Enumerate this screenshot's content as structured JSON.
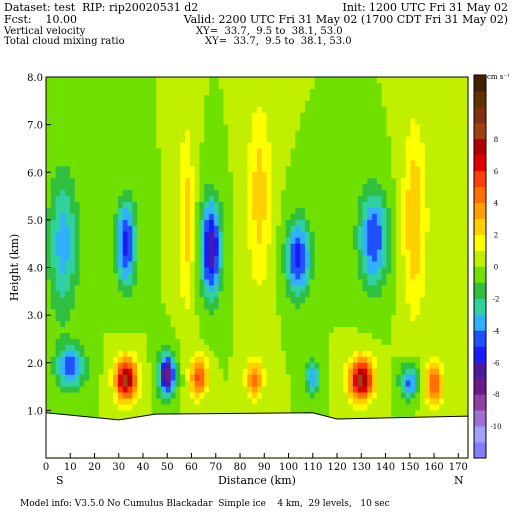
{
  "header": {
    "dataset": "Dataset: test  RIP: rip20020531 d2",
    "init": "Init: 1200 UTC Fri 31 May 02",
    "fcst": "Fcst:    10.00",
    "valid": "Valid: 2200 UTC Fri 31 May 02 (1700 CDT Fri 31 May 02)",
    "field1": "Vertical velocity",
    "field1_xy": "XY=  33.7,  9.5 to  38.1, 53.0",
    "field2": "Total cloud mixing ratio",
    "field2_xy": "XY=  33.7,  9.5 to  38.1, 53.0"
  },
  "footer": {
    "model_info": "Model info: V3.5.0 No Cumulus Blackadar  Simple ice    4 km,  29 levels,   10 sec"
  },
  "chart_data": {
    "type": "heatmap",
    "xlabel": "Distance (km)",
    "ylabel": "Height (km)",
    "xlim": [
      0,
      174
    ],
    "ylim": [
      0,
      8
    ],
    "x_ticks": [
      0,
      10,
      20,
      30,
      40,
      50,
      60,
      70,
      80,
      90,
      100,
      110,
      120,
      130,
      140,
      150,
      160,
      170
    ],
    "y_ticks": [
      {
        "value": 1,
        "label": "1.0"
      },
      {
        "value": 2,
        "label": "2.0"
      },
      {
        "value": 3,
        "label": "3.0"
      },
      {
        "value": 4,
        "label": "4.0"
      },
      {
        "value": 5,
        "label": "5.0"
      },
      {
        "value": 6,
        "label": "6.0"
      },
      {
        "value": 7,
        "label": "7.0"
      },
      {
        "value": 8,
        "label": "8.0"
      }
    ],
    "x_end_labels": {
      "left": "S",
      "right": "N"
    },
    "colorbar": {
      "unit": "cm s⁻¹",
      "labels": [
        {
          "value": 8,
          "label": "8"
        },
        {
          "value": 6,
          "label": "6"
        },
        {
          "value": 4,
          "label": "4"
        },
        {
          "value": 2,
          "label": "2"
        },
        {
          "value": 0,
          "label": "0"
        },
        {
          "value": -2,
          "label": "-2"
        },
        {
          "value": -4,
          "label": "-4"
        },
        {
          "value": -6,
          "label": "-6"
        },
        {
          "value": -8,
          "label": "-8"
        },
        {
          "value": -10,
          "label": "-10"
        }
      ],
      "range": [
        -12,
        12
      ],
      "colors": [
        "#8080ff",
        "#a0a0ff",
        "#a070d0",
        "#9040a0",
        "#6a1a8a",
        "#4c1a9a",
        "#1a1aff",
        "#2050ff",
        "#30b0ff",
        "#30d0a0",
        "#30c040",
        "#70e000",
        "#c0f000",
        "#ffff00",
        "#ffd000",
        "#ffa000",
        "#ff7000",
        "#ff4000",
        "#e00000",
        "#b00000",
        "#a04010",
        "#803010",
        "#603000",
        "#402000"
      ]
    },
    "field": {
      "background": 0,
      "features": [
        {
          "x": 33,
          "z": 1.65,
          "amplitude": 8.5,
          "sx": 4.5,
          "sz": 0.45
        },
        {
          "x": 50,
          "z": 1.75,
          "amplitude": -7.5,
          "sx": 3.5,
          "sz": 0.45
        },
        {
          "x": 63,
          "z": 1.7,
          "amplitude": 5.5,
          "sx": 3.5,
          "sz": 0.4
        },
        {
          "x": 86,
          "z": 1.65,
          "amplitude": 4.5,
          "sx": 3.5,
          "sz": 0.4
        },
        {
          "x": 110,
          "z": 1.7,
          "amplitude": -4.0,
          "sx": 3.0,
          "sz": 0.35
        },
        {
          "x": 130,
          "z": 1.65,
          "amplitude": 8.5,
          "sx": 5.0,
          "sz": 0.45
        },
        {
          "x": 150,
          "z": 1.6,
          "amplitude": -4.5,
          "sx": 4.0,
          "sz": 0.35
        },
        {
          "x": 160,
          "z": 1.55,
          "amplitude": 5.0,
          "sx": 4.0,
          "sz": 0.45
        },
        {
          "x": 10,
          "z": 1.9,
          "amplitude": -4.5,
          "sx": 6.0,
          "sz": 0.45
        },
        {
          "x": 68,
          "z": 4.4,
          "amplitude": -7.0,
          "sx": 4.0,
          "sz": 1.0
        },
        {
          "x": 33,
          "z": 4.5,
          "amplitude": -5.5,
          "sx": 4.0,
          "sz": 0.9
        },
        {
          "x": 104,
          "z": 4.2,
          "amplitude": -5.5,
          "sx": 5.0,
          "sz": 0.8
        },
        {
          "x": 135,
          "z": 4.6,
          "amplitude": -5.0,
          "sx": 6.0,
          "sz": 1.0
        },
        {
          "x": 7,
          "z": 4.5,
          "amplitude": -3.5,
          "sx": 6.0,
          "sz": 1.5
        },
        {
          "x": 58,
          "z": 5.0,
          "amplitude": 2.5,
          "sx": 3.0,
          "sz": 2.0
        },
        {
          "x": 88,
          "z": 5.5,
          "amplitude": 2.5,
          "sx": 5.0,
          "sz": 2.0
        },
        {
          "x": 152,
          "z": 5.0,
          "amplitude": 3.0,
          "sx": 5.0,
          "sz": 2.0
        }
      ]
    },
    "terrain_km": [
      [
        0,
        0.95
      ],
      [
        30,
        0.8
      ],
      [
        45,
        0.92
      ],
      [
        110,
        0.95
      ],
      [
        120,
        0.82
      ],
      [
        174,
        0.88
      ]
    ]
  }
}
